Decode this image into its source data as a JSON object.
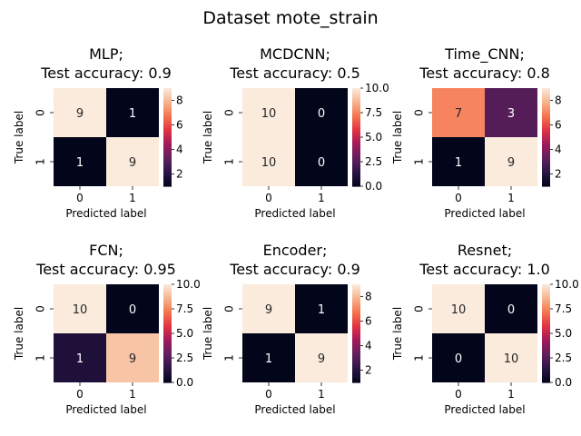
{
  "figure_title": "Dataset mote_strain",
  "chart_data": [
    {
      "type": "heatmap",
      "title_line1": "MLP;",
      "title_line2": "Test accuracy: 0.9",
      "xlabel": "Predicted label",
      "ylabel": "True label",
      "x_ticks": [
        "0",
        "1"
      ],
      "y_ticks": [
        "0",
        "1"
      ],
      "matrix": [
        [
          9,
          1
        ],
        [
          1,
          9
        ]
      ],
      "colorbar": {
        "min": 1,
        "max": 9,
        "ticks": [
          "2",
          "4",
          "6",
          "8"
        ],
        "tick_values": [
          2,
          4,
          6,
          8
        ]
      }
    },
    {
      "type": "heatmap",
      "title_line1": "MCDCNN;",
      "title_line2": "Test accuracy: 0.5",
      "xlabel": "Predicted label",
      "ylabel": "True label",
      "x_ticks": [
        "0",
        "1"
      ],
      "y_ticks": [
        "0",
        "1"
      ],
      "matrix": [
        [
          10,
          0
        ],
        [
          10,
          0
        ]
      ],
      "colorbar": {
        "min": 0,
        "max": 10,
        "ticks": [
          "0.0",
          "2.5",
          "5.0",
          "7.5",
          "10.0"
        ],
        "tick_values": [
          0,
          2.5,
          5,
          7.5,
          10
        ]
      }
    },
    {
      "type": "heatmap",
      "title_line1": "Time_CNN;",
      "title_line2": "Test accuracy: 0.8",
      "xlabel": "Predicted label",
      "ylabel": "True label",
      "x_ticks": [
        "0",
        "1"
      ],
      "y_ticks": [
        "0",
        "1"
      ],
      "matrix": [
        [
          7,
          3
        ],
        [
          1,
          9
        ]
      ],
      "colorbar": {
        "min": 1,
        "max": 9,
        "ticks": [
          "2",
          "4",
          "6",
          "8"
        ],
        "tick_values": [
          2,
          4,
          6,
          8
        ]
      }
    },
    {
      "type": "heatmap",
      "title_line1": "FCN;",
      "title_line2": "Test accuracy: 0.95",
      "xlabel": "Predicted label",
      "ylabel": "True label",
      "x_ticks": [
        "0",
        "1"
      ],
      "y_ticks": [
        "0",
        "1"
      ],
      "matrix": [
        [
          10,
          0
        ],
        [
          1,
          9
        ]
      ],
      "colorbar": {
        "min": 0,
        "max": 10,
        "ticks": [
          "0.0",
          "2.5",
          "5.0",
          "7.5",
          "10.0"
        ],
        "tick_values": [
          0,
          2.5,
          5,
          7.5,
          10
        ]
      }
    },
    {
      "type": "heatmap",
      "title_line1": "Encoder;",
      "title_line2": "Test accuracy: 0.9",
      "xlabel": "Predicted label",
      "ylabel": "True label",
      "x_ticks": [
        "0",
        "1"
      ],
      "y_ticks": [
        "0",
        "1"
      ],
      "matrix": [
        [
          9,
          1
        ],
        [
          1,
          9
        ]
      ],
      "colorbar": {
        "min": 1,
        "max": 9,
        "ticks": [
          "2",
          "4",
          "6",
          "8"
        ],
        "tick_values": [
          2,
          4,
          6,
          8
        ]
      }
    },
    {
      "type": "heatmap",
      "title_line1": "Resnet;",
      "title_line2": "Test accuracy: 1.0",
      "xlabel": "Predicted label",
      "ylabel": "True label",
      "x_ticks": [
        "0",
        "1"
      ],
      "y_ticks": [
        "0",
        "1"
      ],
      "matrix": [
        [
          10,
          0
        ],
        [
          0,
          10
        ]
      ],
      "colorbar": {
        "min": 0,
        "max": 10,
        "ticks": [
          "0.0",
          "2.5",
          "5.0",
          "7.5",
          "10.0"
        ],
        "tick_values": [
          0,
          2.5,
          5,
          7.5,
          10
        ]
      }
    }
  ],
  "colormap_stops": [
    "#03051a",
    "#2b1546",
    "#611f5e",
    "#a11a5b",
    "#e13342",
    "#f6744e",
    "#f6b48e",
    "#faebdd"
  ]
}
